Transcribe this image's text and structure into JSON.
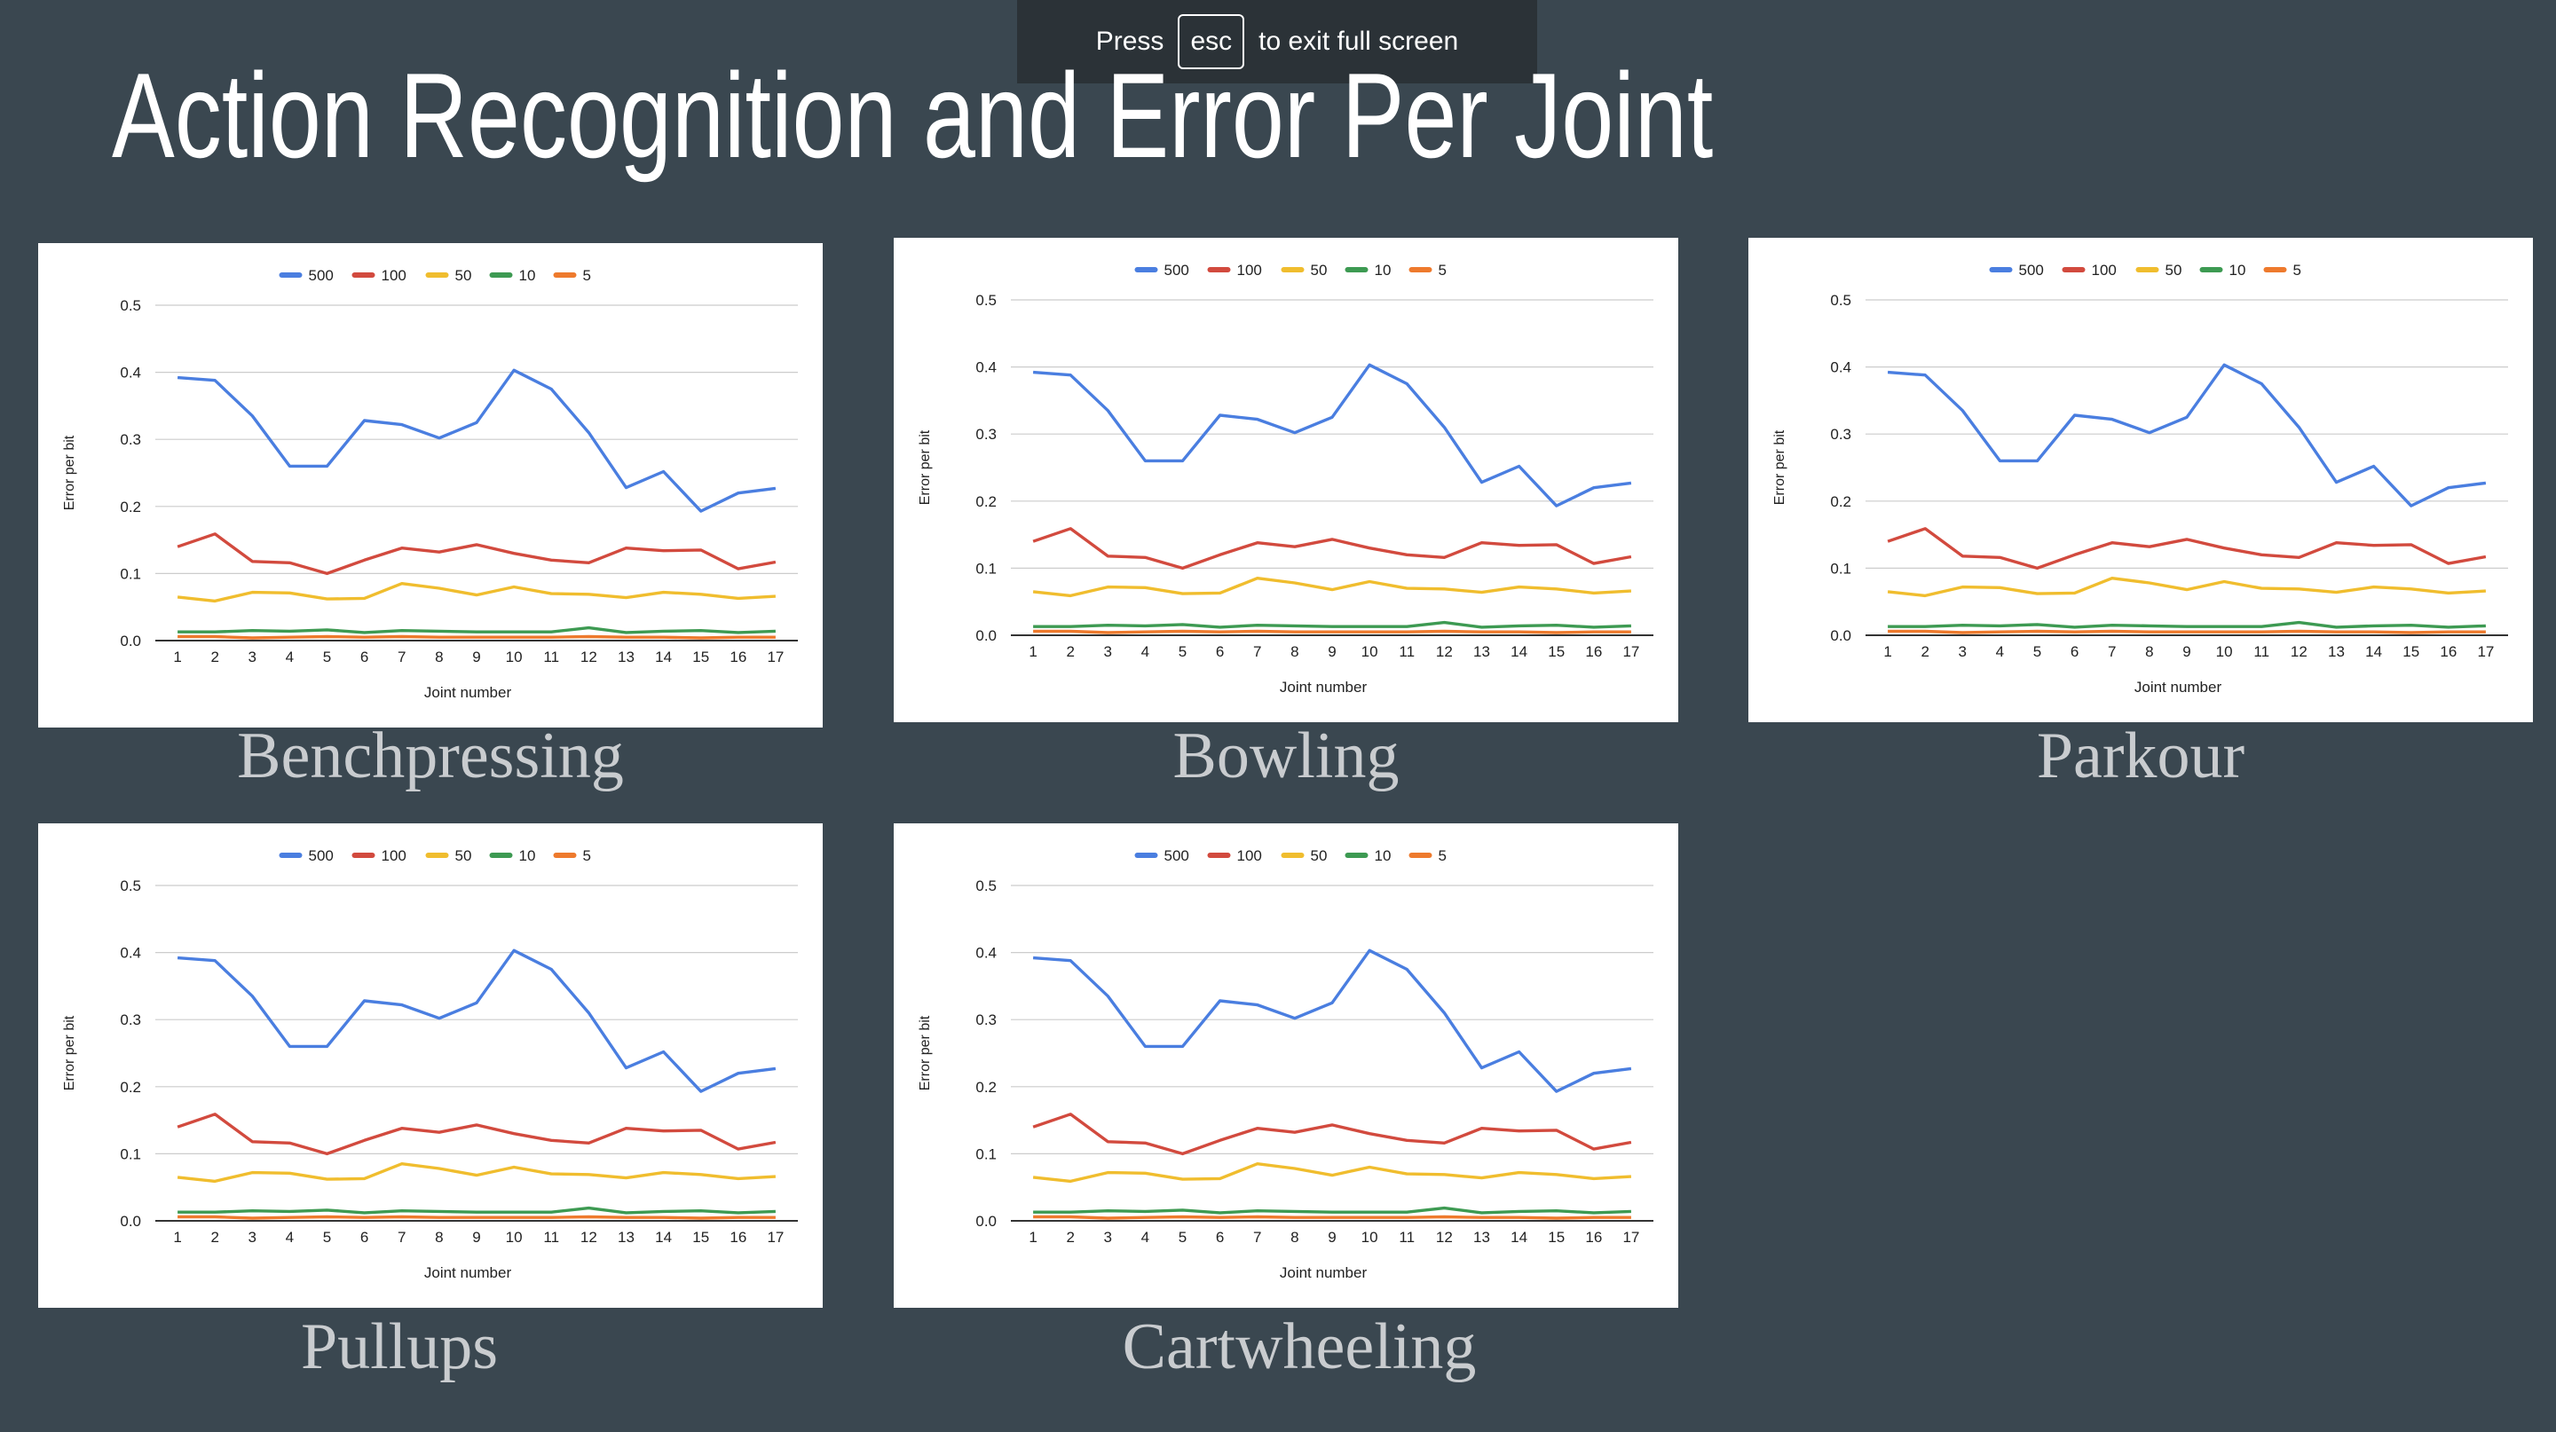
{
  "fullscreen_notice": {
    "press": "Press",
    "key": "esc",
    "rest": "to exit full screen"
  },
  "slide": {
    "title": "Action Recognition and Error Per Joint"
  },
  "colors": {
    "background": "#3a4750",
    "500": "#4a7ee0",
    "100": "#d24a3e",
    "50": "#f0bd2e",
    "10": "#3d9a52",
    "5": "#ee7a2d"
  },
  "chart_data": [
    {
      "type": "line",
      "title": "Benchpressing",
      "xlabel": "Joint number",
      "ylabel": "Error per bit",
      "x": [
        1,
        2,
        3,
        4,
        5,
        6,
        7,
        8,
        9,
        10,
        11,
        12,
        13,
        14,
        15,
        16,
        17
      ],
      "y_ticks": [
        "0.0",
        "0.1",
        "0.2",
        "0.3",
        "0.4",
        "0.5"
      ],
      "ylim": [
        0,
        0.5
      ],
      "grid": true,
      "legend": "top",
      "series": [
        {
          "name": "500",
          "color": "#4a7ee0",
          "values": [
            0.392,
            0.388,
            0.335,
            0.26,
            0.26,
            0.328,
            0.322,
            0.302,
            0.325,
            0.403,
            0.375,
            0.31,
            0.228,
            0.252,
            0.193,
            0.22,
            0.227
          ]
        },
        {
          "name": "100",
          "color": "#d24a3e",
          "values": [
            0.14,
            0.159,
            0.118,
            0.116,
            0.1,
            0.12,
            0.138,
            0.132,
            0.143,
            0.13,
            0.12,
            0.116,
            0.138,
            0.134,
            0.135,
            0.107,
            0.117
          ]
        },
        {
          "name": "50",
          "color": "#f0bd2e",
          "values": [
            0.065,
            0.059,
            0.072,
            0.071,
            0.062,
            0.063,
            0.085,
            0.078,
            0.068,
            0.08,
            0.07,
            0.069,
            0.064,
            0.072,
            0.069,
            0.063,
            0.066
          ]
        },
        {
          "name": "10",
          "color": "#3d9a52",
          "values": [
            0.013,
            0.013,
            0.015,
            0.014,
            0.016,
            0.012,
            0.015,
            0.014,
            0.013,
            0.013,
            0.013,
            0.019,
            0.012,
            0.014,
            0.015,
            0.012,
            0.014
          ]
        },
        {
          "name": "5",
          "color": "#ee7a2d",
          "values": [
            0.006,
            0.006,
            0.004,
            0.005,
            0.006,
            0.005,
            0.006,
            0.005,
            0.005,
            0.005,
            0.005,
            0.006,
            0.005,
            0.005,
            0.004,
            0.005,
            0.005
          ]
        }
      ]
    },
    {
      "type": "line",
      "title": "Bowling",
      "xlabel": "Joint number",
      "ylabel": "Error per bit",
      "x": [
        1,
        2,
        3,
        4,
        5,
        6,
        7,
        8,
        9,
        10,
        11,
        12,
        13,
        14,
        15,
        16,
        17
      ],
      "y_ticks": [
        "0.0",
        "0.1",
        "0.2",
        "0.3",
        "0.4",
        "0.5"
      ],
      "ylim": [
        0,
        0.5
      ],
      "grid": true,
      "legend": "top",
      "series": [
        {
          "name": "500",
          "color": "#4a7ee0",
          "values": [
            0.392,
            0.388,
            0.335,
            0.26,
            0.26,
            0.328,
            0.322,
            0.302,
            0.325,
            0.403,
            0.375,
            0.31,
            0.228,
            0.252,
            0.193,
            0.22,
            0.227
          ]
        },
        {
          "name": "100",
          "color": "#d24a3e",
          "values": [
            0.14,
            0.159,
            0.118,
            0.116,
            0.1,
            0.12,
            0.138,
            0.132,
            0.143,
            0.13,
            0.12,
            0.116,
            0.138,
            0.134,
            0.135,
            0.107,
            0.117
          ]
        },
        {
          "name": "50",
          "color": "#f0bd2e",
          "values": [
            0.065,
            0.059,
            0.072,
            0.071,
            0.062,
            0.063,
            0.085,
            0.078,
            0.068,
            0.08,
            0.07,
            0.069,
            0.064,
            0.072,
            0.069,
            0.063,
            0.066
          ]
        },
        {
          "name": "10",
          "color": "#3d9a52",
          "values": [
            0.013,
            0.013,
            0.015,
            0.014,
            0.016,
            0.012,
            0.015,
            0.014,
            0.013,
            0.013,
            0.013,
            0.019,
            0.012,
            0.014,
            0.015,
            0.012,
            0.014
          ]
        },
        {
          "name": "5",
          "color": "#ee7a2d",
          "values": [
            0.006,
            0.006,
            0.004,
            0.005,
            0.006,
            0.005,
            0.006,
            0.005,
            0.005,
            0.005,
            0.005,
            0.006,
            0.005,
            0.005,
            0.004,
            0.005,
            0.005
          ]
        }
      ]
    },
    {
      "type": "line",
      "title": "Parkour",
      "xlabel": "Joint number",
      "ylabel": "Error per bit",
      "x": [
        1,
        2,
        3,
        4,
        5,
        6,
        7,
        8,
        9,
        10,
        11,
        12,
        13,
        14,
        15,
        16,
        17
      ],
      "y_ticks": [
        "0.0",
        "0.1",
        "0.2",
        "0.3",
        "0.4",
        "0.5"
      ],
      "ylim": [
        0,
        0.5
      ],
      "grid": true,
      "legend": "top",
      "series": [
        {
          "name": "500",
          "color": "#4a7ee0",
          "values": [
            0.392,
            0.388,
            0.335,
            0.26,
            0.26,
            0.328,
            0.322,
            0.302,
            0.325,
            0.403,
            0.375,
            0.31,
            0.228,
            0.252,
            0.193,
            0.22,
            0.227
          ]
        },
        {
          "name": "100",
          "color": "#d24a3e",
          "values": [
            0.14,
            0.159,
            0.118,
            0.116,
            0.1,
            0.12,
            0.138,
            0.132,
            0.143,
            0.13,
            0.12,
            0.116,
            0.138,
            0.134,
            0.135,
            0.107,
            0.117
          ]
        },
        {
          "name": "50",
          "color": "#f0bd2e",
          "values": [
            0.065,
            0.059,
            0.072,
            0.071,
            0.062,
            0.063,
            0.085,
            0.078,
            0.068,
            0.08,
            0.07,
            0.069,
            0.064,
            0.072,
            0.069,
            0.063,
            0.066
          ]
        },
        {
          "name": "10",
          "color": "#3d9a52",
          "values": [
            0.013,
            0.013,
            0.015,
            0.014,
            0.016,
            0.012,
            0.015,
            0.014,
            0.013,
            0.013,
            0.013,
            0.019,
            0.012,
            0.014,
            0.015,
            0.012,
            0.014
          ]
        },
        {
          "name": "5",
          "color": "#ee7a2d",
          "values": [
            0.006,
            0.006,
            0.004,
            0.005,
            0.006,
            0.005,
            0.006,
            0.005,
            0.005,
            0.005,
            0.005,
            0.006,
            0.005,
            0.005,
            0.004,
            0.005,
            0.005
          ]
        }
      ]
    },
    {
      "type": "line",
      "title": "Pullups",
      "xlabel": "Joint number",
      "ylabel": "Error per bit",
      "x": [
        1,
        2,
        3,
        4,
        5,
        6,
        7,
        8,
        9,
        10,
        11,
        12,
        13,
        14,
        15,
        16,
        17
      ],
      "y_ticks": [
        "0.0",
        "0.1",
        "0.2",
        "0.3",
        "0.4",
        "0.5"
      ],
      "ylim": [
        0,
        0.5
      ],
      "grid": true,
      "legend": "top",
      "series": [
        {
          "name": "500",
          "color": "#4a7ee0",
          "values": [
            0.392,
            0.388,
            0.335,
            0.26,
            0.26,
            0.328,
            0.322,
            0.302,
            0.325,
            0.403,
            0.375,
            0.31,
            0.228,
            0.252,
            0.193,
            0.22,
            0.227
          ]
        },
        {
          "name": "100",
          "color": "#d24a3e",
          "values": [
            0.14,
            0.159,
            0.118,
            0.116,
            0.1,
            0.12,
            0.138,
            0.132,
            0.143,
            0.13,
            0.12,
            0.116,
            0.138,
            0.134,
            0.135,
            0.107,
            0.117
          ]
        },
        {
          "name": "50",
          "color": "#f0bd2e",
          "values": [
            0.065,
            0.059,
            0.072,
            0.071,
            0.062,
            0.063,
            0.085,
            0.078,
            0.068,
            0.08,
            0.07,
            0.069,
            0.064,
            0.072,
            0.069,
            0.063,
            0.066
          ]
        },
        {
          "name": "10",
          "color": "#3d9a52",
          "values": [
            0.013,
            0.013,
            0.015,
            0.014,
            0.016,
            0.012,
            0.015,
            0.014,
            0.013,
            0.013,
            0.013,
            0.019,
            0.012,
            0.014,
            0.015,
            0.012,
            0.014
          ]
        },
        {
          "name": "5",
          "color": "#ee7a2d",
          "values": [
            0.006,
            0.006,
            0.004,
            0.005,
            0.006,
            0.005,
            0.006,
            0.005,
            0.005,
            0.005,
            0.005,
            0.006,
            0.005,
            0.005,
            0.004,
            0.005,
            0.005
          ]
        }
      ]
    },
    {
      "type": "line",
      "title": "Cartwheeling",
      "xlabel": "Joint number",
      "ylabel": "Error per bit",
      "x": [
        1,
        2,
        3,
        4,
        5,
        6,
        7,
        8,
        9,
        10,
        11,
        12,
        13,
        14,
        15,
        16,
        17
      ],
      "y_ticks": [
        "0.0",
        "0.1",
        "0.2",
        "0.3",
        "0.4",
        "0.5"
      ],
      "ylim": [
        0,
        0.5
      ],
      "grid": true,
      "legend": "top",
      "series": [
        {
          "name": "500",
          "color": "#4a7ee0",
          "values": [
            0.392,
            0.388,
            0.335,
            0.26,
            0.26,
            0.328,
            0.322,
            0.302,
            0.325,
            0.403,
            0.375,
            0.31,
            0.228,
            0.252,
            0.193,
            0.22,
            0.227
          ]
        },
        {
          "name": "100",
          "color": "#d24a3e",
          "values": [
            0.14,
            0.159,
            0.118,
            0.116,
            0.1,
            0.12,
            0.138,
            0.132,
            0.143,
            0.13,
            0.12,
            0.116,
            0.138,
            0.134,
            0.135,
            0.107,
            0.117
          ]
        },
        {
          "name": "50",
          "color": "#f0bd2e",
          "values": [
            0.065,
            0.059,
            0.072,
            0.071,
            0.062,
            0.063,
            0.085,
            0.078,
            0.068,
            0.08,
            0.07,
            0.069,
            0.064,
            0.072,
            0.069,
            0.063,
            0.066
          ]
        },
        {
          "name": "10",
          "color": "#3d9a52",
          "values": [
            0.013,
            0.013,
            0.015,
            0.014,
            0.016,
            0.012,
            0.015,
            0.014,
            0.013,
            0.013,
            0.013,
            0.019,
            0.012,
            0.014,
            0.015,
            0.012,
            0.014
          ]
        },
        {
          "name": "5",
          "color": "#ee7a2d",
          "values": [
            0.006,
            0.006,
            0.004,
            0.005,
            0.006,
            0.005,
            0.006,
            0.005,
            0.005,
            0.005,
            0.005,
            0.006,
            0.005,
            0.005,
            0.004,
            0.005,
            0.005
          ]
        }
      ]
    }
  ]
}
